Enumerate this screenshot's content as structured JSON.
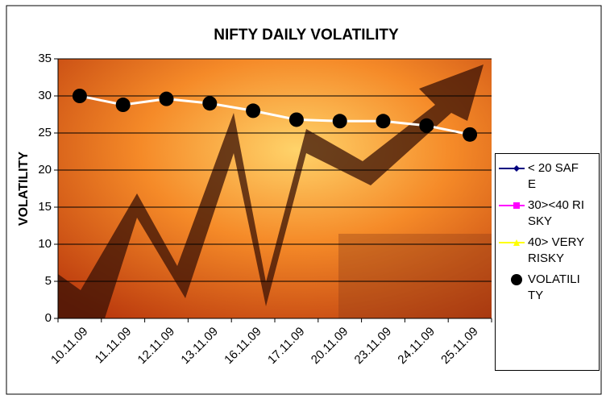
{
  "chart_data": {
    "type": "line",
    "title": "NIFTY DAILY VOLATILITY",
    "y_label": "VOLATILITY",
    "categories": [
      "10.11.09",
      "11.11.09",
      "12.11.09",
      "13.11.09",
      "16.11.09",
      "17.11.09",
      "20.11.09",
      "23.11.09",
      "24.11.09",
      "25.11.09"
    ],
    "series": [
      {
        "name": "< 20 SAFE",
        "color": "#000080",
        "marker": "diamond",
        "values": [
          null,
          null,
          null,
          null,
          null,
          null,
          null,
          null,
          null,
          null
        ]
      },
      {
        "name": "30><40 RISKY",
        "color": "#ff00ff",
        "marker": "square",
        "values": [
          null,
          null,
          null,
          null,
          null,
          null,
          null,
          null,
          null,
          null
        ]
      },
      {
        "name": "40> VERY RISKY",
        "color": "#ffff00",
        "marker": "triangle",
        "values": [
          null,
          null,
          null,
          null,
          null,
          null,
          null,
          null,
          null,
          null
        ]
      },
      {
        "name": "VOLATILITY",
        "color": "#000000",
        "line_color": "#ffffff",
        "marker": "circle",
        "values": [
          30,
          28.8,
          29.6,
          29,
          28,
          26.8,
          26.6,
          26.6,
          26,
          24.8
        ]
      }
    ],
    "ylim": [
      0,
      35
    ],
    "yticks": [
      0,
      5,
      10,
      15,
      20,
      25,
      30,
      35
    ],
    "grid": true,
    "legend": "right"
  }
}
